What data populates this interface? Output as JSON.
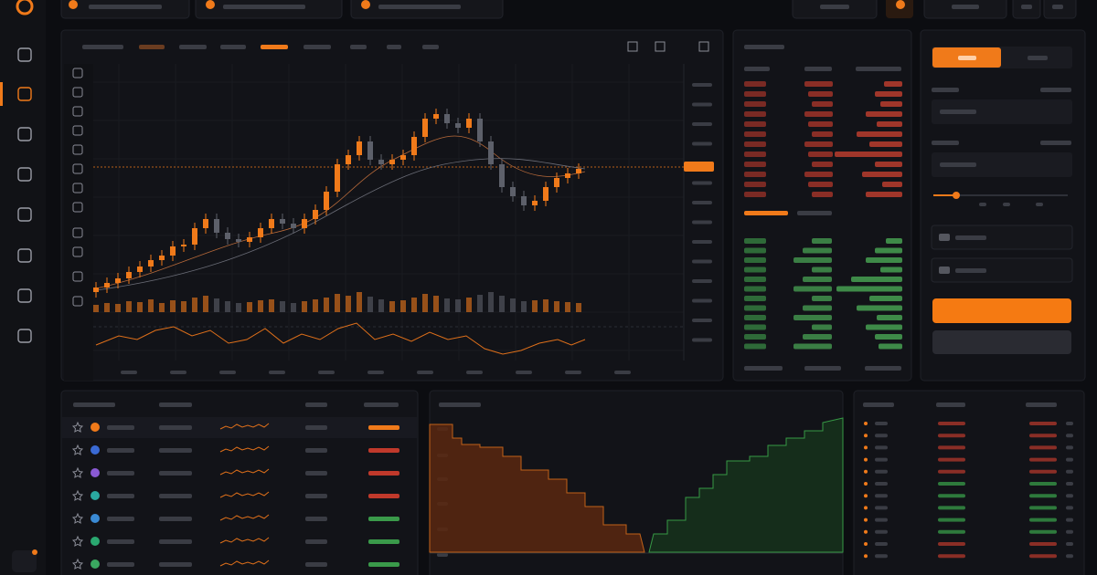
{
  "chart_data": {
    "type": "candlestick",
    "ylim": [
      0,
      260
    ],
    "up_color": "#f07a1a",
    "down_color": "#5d606a",
    "candles": [
      [
        20,
        31,
        14,
        25
      ],
      [
        25,
        36,
        19,
        30
      ],
      [
        30,
        41,
        24,
        35
      ],
      [
        35,
        48,
        29,
        42
      ],
      [
        42,
        54,
        36,
        48
      ],
      [
        48,
        61,
        42,
        55
      ],
      [
        55,
        66,
        49,
        60
      ],
      [
        60,
        76,
        54,
        70
      ],
      [
        70,
        78,
        64,
        72
      ],
      [
        72,
        96,
        66,
        90
      ],
      [
        90,
        106,
        84,
        100
      ],
      [
        100,
        106,
        79,
        85
      ],
      [
        85,
        91,
        72,
        78
      ],
      [
        78,
        84,
        69,
        75
      ],
      [
        75,
        86,
        69,
        80
      ],
      [
        80,
        96,
        74,
        90
      ],
      [
        90,
        106,
        84,
        100
      ],
      [
        100,
        106,
        89,
        95
      ],
      [
        95,
        101,
        84,
        90
      ],
      [
        90,
        106,
        84,
        100
      ],
      [
        100,
        116,
        94,
        110
      ],
      [
        110,
        136,
        104,
        130
      ],
      [
        130,
        166,
        124,
        160
      ],
      [
        160,
        176,
        154,
        170
      ],
      [
        170,
        191,
        164,
        185
      ],
      [
        185,
        191,
        159,
        165
      ],
      [
        165,
        171,
        154,
        160
      ],
      [
        160,
        171,
        154,
        165
      ],
      [
        165,
        176,
        159,
        170
      ],
      [
        170,
        196,
        164,
        190
      ],
      [
        190,
        216,
        184,
        210
      ],
      [
        210,
        221,
        204,
        215
      ],
      [
        215,
        221,
        199,
        205
      ],
      [
        205,
        211,
        194,
        200
      ],
      [
        200,
        216,
        194,
        210
      ],
      [
        210,
        216,
        179,
        185
      ],
      [
        185,
        191,
        154,
        160
      ],
      [
        160,
        166,
        129,
        135
      ],
      [
        135,
        141,
        119,
        125
      ],
      [
        125,
        131,
        109,
        115
      ],
      [
        115,
        126,
        109,
        120
      ],
      [
        120,
        141,
        114,
        135
      ],
      [
        135,
        151,
        129,
        145
      ],
      [
        145,
        156,
        139,
        150
      ],
      [
        150,
        161,
        144,
        155
      ]
    ],
    "volume": [
      8,
      10,
      9,
      12,
      11,
      14,
      10,
      13,
      12,
      16,
      18,
      15,
      12,
      10,
      11,
      13,
      14,
      12,
      10,
      12,
      14,
      16,
      20,
      18,
      22,
      17,
      14,
      12,
      13,
      16,
      20,
      18,
      15,
      14,
      16,
      19,
      22,
      18,
      15,
      12,
      13,
      14,
      12,
      11,
      10
    ]
  }
}
